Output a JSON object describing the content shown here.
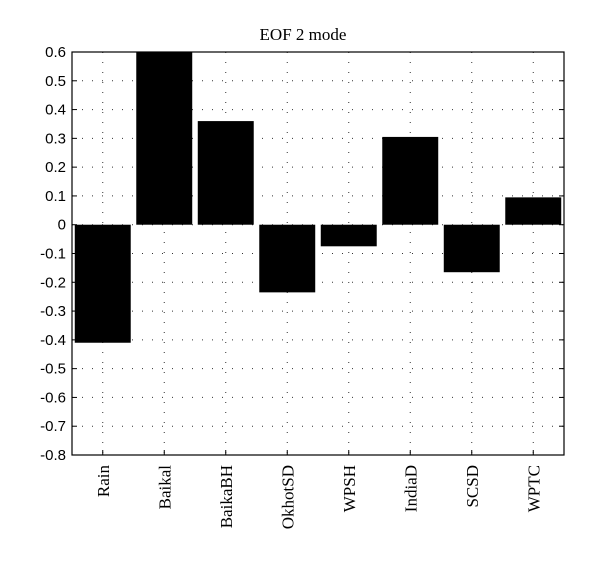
{
  "chart_data": {
    "type": "bar",
    "title": "EOF 2 mode",
    "xlabel": "",
    "ylabel": "",
    "categories": [
      "Rain",
      "Baikal",
      "BaikaBH",
      "OkhotSD",
      "WPSH",
      "IndiaD",
      "SCSD",
      "WPTC"
    ],
    "values": [
      -0.41,
      0.6,
      0.36,
      -0.235,
      -0.075,
      0.305,
      -0.165,
      0.095
    ],
    "ylim": [
      -0.8,
      0.6
    ],
    "yticks": [
      "0.6",
      "0.5",
      "0.4",
      "0.3",
      "0.2",
      "0.1",
      "0",
      "-0.1",
      "-0.2",
      "-0.3",
      "-0.4",
      "-0.5",
      "-0.6",
      "-0.7",
      "-0.8"
    ],
    "grid": true,
    "bar_color": "#000000"
  }
}
